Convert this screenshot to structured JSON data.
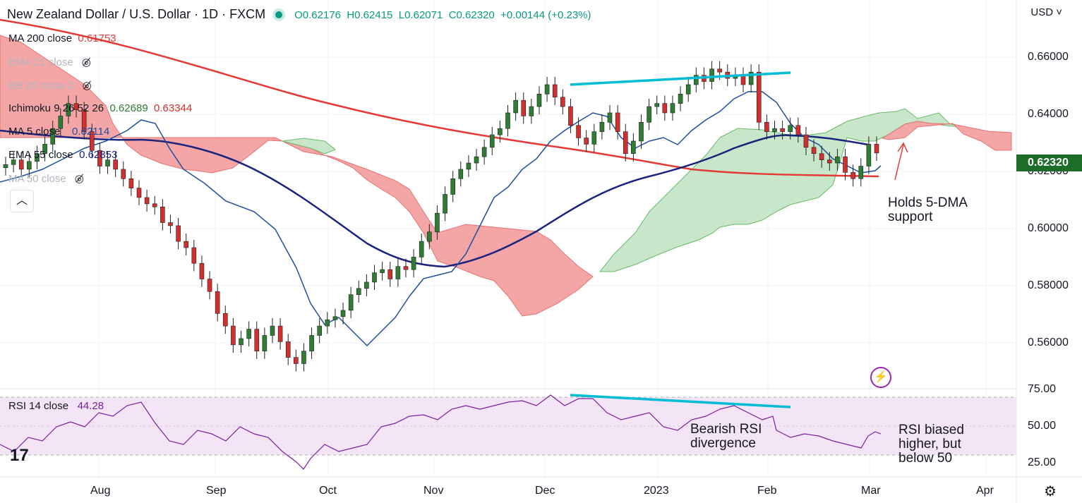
{
  "header": {
    "symbol": "New Zealand Dollar / U.S. Dollar · 1D · FXCM",
    "open": "O0.62176",
    "high": "H0.62415",
    "low": "L0.62071",
    "close": "C0.62320",
    "change": "+0.00144 (+0.23%)"
  },
  "legend": [
    {
      "name": "MA 200 close",
      "value": "0.61753",
      "color": "#e53935",
      "dim": false,
      "hidden": false
    },
    {
      "name": "EMA 21 close",
      "value": "",
      "color": "#b2b5be",
      "dim": true,
      "hidden": true
    },
    {
      "name": "BB 20 close 2",
      "value": "",
      "color": "#b2b5be",
      "dim": true,
      "hidden": true
    },
    {
      "name": "Ichimoku 9 26 52 26",
      "value": "0.62689",
      "value2": "0.63344",
      "color": "#2e7d32",
      "dim": false,
      "hidden": false
    },
    {
      "name": "MA 5 close",
      "value": "0.62114",
      "color": "#1e4fa0",
      "dim": false,
      "hidden": false
    },
    {
      "name": "EMA 55 close",
      "value": "0.62853",
      "color": "#1a237e",
      "dim": false,
      "hidden": false
    },
    {
      "name": "MA 50 close",
      "value": "",
      "color": "#b2b5be",
      "dim": true,
      "hidden": true
    }
  ],
  "currency_selector": "USD",
  "price_axis": [
    "0.66000",
    "0.64000",
    "0.62000",
    "0.60000",
    "0.58000",
    "0.56000"
  ],
  "last_price": "0.62320",
  "rsi_axis": [
    "75.00",
    "50.00",
    "25.00"
  ],
  "time_axis": [
    "Aug",
    "Sep",
    "Oct",
    "Nov",
    "Dec",
    "2023",
    "Feb",
    "Mar",
    "Apr"
  ],
  "rsi_legend": {
    "name": "RSI 14 close",
    "value": "44.28"
  },
  "annotations": {
    "holds": [
      "Holds 5-DMA",
      "support"
    ],
    "bearish": [
      "Bearish RSI",
      "divergence"
    ],
    "rsi_biased": [
      "RSI biased",
      "higher, but",
      "below 50"
    ]
  },
  "colors": {
    "up": "#26a69a",
    "up_candle": "#2e7d32",
    "down_candle": "#d32f2f",
    "ma200": "#e53935",
    "ema55": "#1a237e",
    "ma5": "#1e4fa0",
    "cloud_bull": "#a5d6a7",
    "cloud_bear": "#ef9a9a",
    "rsi": "#7b1fa2",
    "rsi_band": "#f3e5f5",
    "trendline": "#00bcd4"
  },
  "chart_data": {
    "type": "candlestick",
    "title": "New Zealand Dollar / U.S. Dollar · 1D · FXCM",
    "x": [
      "Aug",
      "Sep",
      "Oct",
      "Nov",
      "Dec",
      "2023",
      "Feb",
      "Mar",
      "Apr"
    ],
    "ylim": [
      0.548,
      0.672
    ],
    "closes": [
      0.6195,
      0.621,
      0.618,
      0.6205,
      0.623,
      0.626,
      0.631,
      0.635,
      0.639,
      0.637,
      0.63,
      0.624,
      0.619,
      0.621,
      0.618,
      0.615,
      0.612,
      0.609,
      0.607,
      0.606,
      0.601,
      0.6,
      0.595,
      0.593,
      0.588,
      0.583,
      0.579,
      0.572,
      0.568,
      0.562,
      0.564,
      0.567,
      0.56,
      0.565,
      0.568,
      0.563,
      0.558,
      0.556,
      0.56,
      0.565,
      0.568,
      0.57,
      0.571,
      0.573,
      0.578,
      0.58,
      0.582,
      0.585,
      0.586,
      0.583,
      0.587,
      0.586,
      0.59,
      0.595,
      0.598,
      0.604,
      0.61,
      0.615,
      0.618,
      0.62,
      0.622,
      0.625,
      0.629,
      0.631,
      0.636,
      0.64,
      0.635,
      0.638,
      0.642,
      0.645,
      0.641,
      0.638,
      0.632,
      0.628,
      0.626,
      0.63,
      0.633,
      0.636,
      0.63,
      0.623,
      0.627,
      0.633,
      0.638,
      0.639,
      0.636,
      0.639,
      0.642,
      0.645,
      0.648,
      0.646,
      0.65,
      0.649,
      0.647,
      0.648,
      0.645,
      0.649,
      0.633,
      0.63,
      0.631,
      0.63,
      0.632,
      0.629,
      0.625,
      0.623,
      0.621,
      0.62,
      0.622,
      0.617,
      0.615,
      0.619,
      0.626,
      0.6232
    ],
    "ma200": "declining from ~0.669 to ~0.6175",
    "rsi": {
      "name": "RSI 14 close",
      "value": 44.28,
      "ylim": [
        15,
        80
      ],
      "band": [
        30,
        70
      ]
    }
  }
}
